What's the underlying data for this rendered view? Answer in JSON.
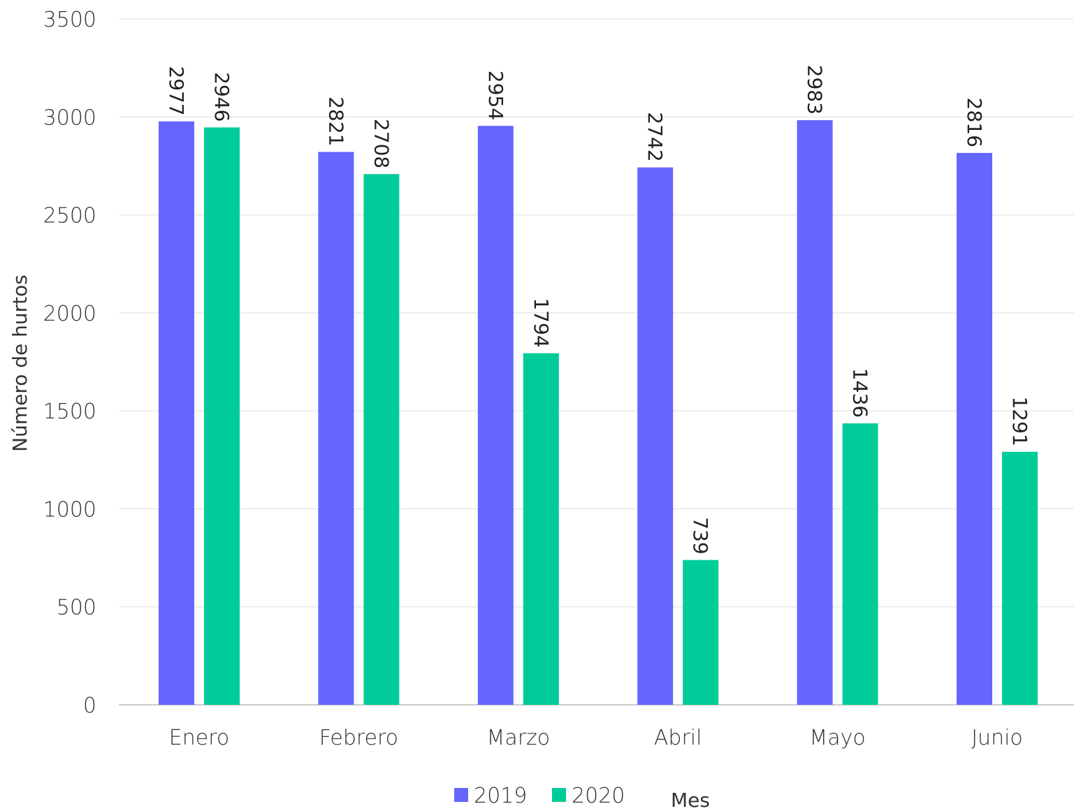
{
  "chart_data": {
    "type": "bar",
    "title": "",
    "xlabel": "Mes",
    "ylabel": "Número de hurtos",
    "categories": [
      "Enero",
      "Febrero",
      "Marzo",
      "Abril",
      "Mayo",
      "Junio"
    ],
    "series": [
      {
        "name": "2019",
        "color": "#6666ff",
        "values": [
          2977,
          2821,
          2954,
          2742,
          2983,
          2816
        ]
      },
      {
        "name": "2020",
        "color": "#00cc99",
        "values": [
          2946,
          2708,
          1794,
          739,
          1436,
          1291
        ]
      }
    ],
    "ylim": [
      0,
      3500
    ],
    "yticks": [
      0,
      500,
      1000,
      1500,
      2000,
      2500,
      3000,
      3500
    ],
    "grid": true,
    "legend": "bottom",
    "data_labels": "rotated-vertical"
  }
}
